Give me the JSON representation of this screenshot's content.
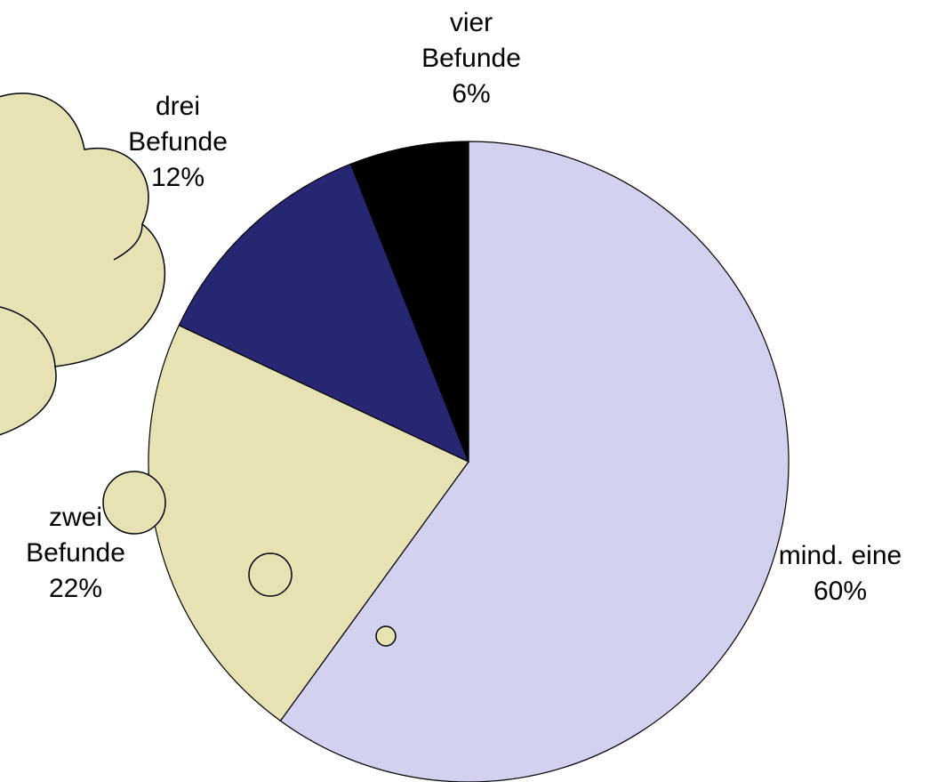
{
  "chart_data": {
    "type": "pie",
    "categories": [
      "mind. eine",
      "zwei Befunde",
      "drei Befunde",
      "vier Befunde"
    ],
    "values": [
      60,
      22,
      12,
      6
    ],
    "value_labels": [
      "60%",
      "22%",
      "12%",
      "6%"
    ],
    "colors": [
      "#d2d2f0",
      "#e6e2b4",
      "#262673",
      "#000000"
    ]
  }
}
